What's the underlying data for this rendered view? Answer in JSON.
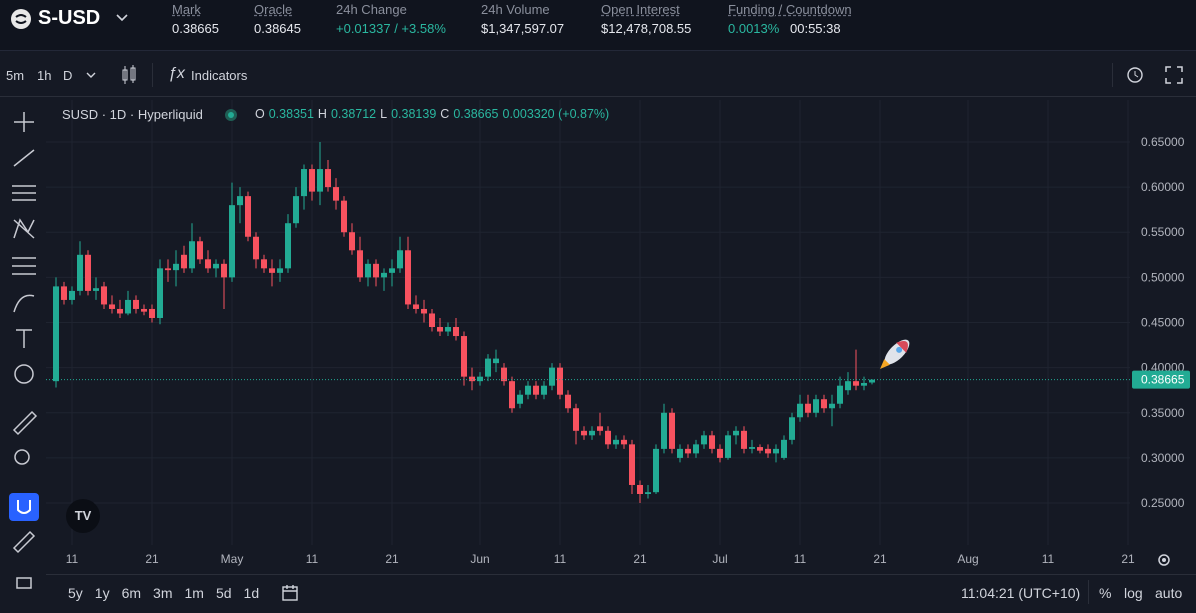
{
  "header": {
    "symbol": "S-USD",
    "stats": [
      {
        "label": "Mark",
        "value": "0.38665"
      },
      {
        "label": "Oracle",
        "value": "0.38645"
      },
      {
        "label": "24h Change",
        "value": "+0.01337 / +3.58%"
      },
      {
        "label": "24h Volume",
        "value": "$1,347,597.07"
      },
      {
        "label": "Open Interest",
        "value": "$12,478,708.55"
      },
      {
        "label": "Funding / Countdown",
        "value": "0.0013%",
        "countdown": "00:55:38"
      }
    ]
  },
  "toolbar": {
    "intervals": [
      "5m",
      "1h",
      "D"
    ],
    "indicators": "Indicators"
  },
  "legend": {
    "title": "SUSD · 1D · Hyperliquid",
    "items": [
      {
        "key": "O",
        "value": "0.38351"
      },
      {
        "key": "H",
        "value": "0.38712"
      },
      {
        "key": "L",
        "value": "0.38139"
      },
      {
        "key": "C",
        "value": "0.38665"
      }
    ],
    "change": "0.003320 (+0.87%)"
  },
  "chart_data": {
    "type": "candlestick",
    "up_color": "#22ab94",
    "down_color": "#f7525f",
    "grid": true,
    "ohlc": [
      [
        0.385,
        0.5,
        0.378,
        0.49
      ],
      [
        0.49,
        0.495,
        0.47,
        0.475
      ],
      [
        0.475,
        0.49,
        0.47,
        0.485
      ],
      [
        0.485,
        0.54,
        0.48,
        0.525
      ],
      [
        0.525,
        0.53,
        0.48,
        0.485
      ],
      [
        0.485,
        0.5,
        0.475,
        0.488
      ],
      [
        0.49,
        0.495,
        0.465,
        0.47
      ],
      [
        0.47,
        0.48,
        0.46,
        0.465
      ],
      [
        0.465,
        0.475,
        0.455,
        0.46
      ],
      [
        0.46,
        0.485,
        0.458,
        0.475
      ],
      [
        0.475,
        0.48,
        0.46,
        0.465
      ],
      [
        0.465,
        0.47,
        0.458,
        0.462
      ],
      [
        0.465,
        0.47,
        0.45,
        0.455
      ],
      [
        0.455,
        0.52,
        0.448,
        0.51
      ],
      [
        0.51,
        0.52,
        0.495,
        0.508
      ],
      [
        0.508,
        0.53,
        0.49,
        0.515
      ],
      [
        0.525,
        0.535,
        0.505,
        0.51
      ],
      [
        0.51,
        0.56,
        0.505,
        0.54
      ],
      [
        0.54,
        0.545,
        0.515,
        0.52
      ],
      [
        0.52,
        0.53,
        0.505,
        0.51
      ],
      [
        0.51,
        0.52,
        0.5,
        0.515
      ],
      [
        0.515,
        0.52,
        0.465,
        0.5
      ],
      [
        0.5,
        0.605,
        0.495,
        0.58
      ],
      [
        0.58,
        0.6,
        0.56,
        0.59
      ],
      [
        0.59,
        0.595,
        0.54,
        0.545
      ],
      [
        0.545,
        0.55,
        0.51,
        0.52
      ],
      [
        0.52,
        0.525,
        0.505,
        0.51
      ],
      [
        0.51,
        0.52,
        0.49,
        0.505
      ],
      [
        0.505,
        0.52,
        0.495,
        0.51
      ],
      [
        0.51,
        0.57,
        0.505,
        0.56
      ],
      [
        0.56,
        0.6,
        0.555,
        0.59
      ],
      [
        0.59,
        0.625,
        0.575,
        0.62
      ],
      [
        0.62,
        0.625,
        0.585,
        0.595
      ],
      [
        0.595,
        0.65,
        0.58,
        0.62
      ],
      [
        0.62,
        0.63,
        0.595,
        0.6
      ],
      [
        0.6,
        0.61,
        0.575,
        0.585
      ],
      [
        0.585,
        0.59,
        0.545,
        0.55
      ],
      [
        0.55,
        0.56,
        0.525,
        0.53
      ],
      [
        0.53,
        0.545,
        0.495,
        0.5
      ],
      [
        0.5,
        0.52,
        0.49,
        0.515
      ],
      [
        0.515,
        0.52,
        0.49,
        0.5
      ],
      [
        0.5,
        0.51,
        0.485,
        0.505
      ],
      [
        0.505,
        0.52,
        0.49,
        0.51
      ],
      [
        0.51,
        0.545,
        0.505,
        0.53
      ],
      [
        0.53,
        0.545,
        0.465,
        0.47
      ],
      [
        0.47,
        0.48,
        0.46,
        0.465
      ],
      [
        0.465,
        0.475,
        0.45,
        0.46
      ],
      [
        0.46,
        0.465,
        0.44,
        0.445
      ],
      [
        0.445,
        0.455,
        0.435,
        0.44
      ],
      [
        0.44,
        0.45,
        0.435,
        0.445
      ],
      [
        0.445,
        0.455,
        0.43,
        0.435
      ],
      [
        0.435,
        0.44,
        0.38,
        0.39
      ],
      [
        0.39,
        0.4,
        0.375,
        0.385
      ],
      [
        0.385,
        0.395,
        0.38,
        0.39
      ],
      [
        0.39,
        0.415,
        0.385,
        0.41
      ],
      [
        0.405,
        0.42,
        0.395,
        0.41
      ],
      [
        0.4,
        0.405,
        0.38,
        0.385
      ],
      [
        0.385,
        0.39,
        0.35,
        0.355
      ],
      [
        0.36,
        0.375,
        0.355,
        0.37
      ],
      [
        0.37,
        0.385,
        0.365,
        0.38
      ],
      [
        0.38,
        0.385,
        0.365,
        0.37
      ],
      [
        0.37,
        0.385,
        0.365,
        0.38
      ],
      [
        0.38,
        0.405,
        0.375,
        0.4
      ],
      [
        0.4,
        0.405,
        0.365,
        0.37
      ],
      [
        0.37,
        0.375,
        0.35,
        0.355
      ],
      [
        0.355,
        0.36,
        0.315,
        0.33
      ],
      [
        0.33,
        0.335,
        0.32,
        0.325
      ],
      [
        0.325,
        0.335,
        0.32,
        0.33
      ],
      [
        0.335,
        0.35,
        0.325,
        0.33
      ],
      [
        0.33,
        0.335,
        0.31,
        0.315
      ],
      [
        0.315,
        0.325,
        0.31,
        0.32
      ],
      [
        0.32,
        0.325,
        0.31,
        0.315
      ],
      [
        0.315,
        0.32,
        0.26,
        0.27
      ],
      [
        0.27,
        0.275,
        0.25,
        0.26
      ],
      [
        0.26,
        0.27,
        0.255,
        0.262
      ],
      [
        0.262,
        0.315,
        0.26,
        0.31
      ],
      [
        0.31,
        0.36,
        0.305,
        0.35
      ],
      [
        0.35,
        0.355,
        0.305,
        0.31
      ],
      [
        0.3,
        0.315,
        0.295,
        0.31
      ],
      [
        0.31,
        0.315,
        0.3,
        0.305
      ],
      [
        0.305,
        0.32,
        0.3,
        0.315
      ],
      [
        0.315,
        0.33,
        0.31,
        0.325
      ],
      [
        0.325,
        0.33,
        0.305,
        0.31
      ],
      [
        0.31,
        0.315,
        0.295,
        0.3
      ],
      [
        0.3,
        0.33,
        0.298,
        0.325
      ],
      [
        0.325,
        0.335,
        0.315,
        0.33
      ],
      [
        0.33,
        0.335,
        0.305,
        0.31
      ],
      [
        0.31,
        0.32,
        0.305,
        0.312
      ],
      [
        0.312,
        0.315,
        0.305,
        0.308
      ],
      [
        0.31,
        0.315,
        0.3,
        0.305
      ],
      [
        0.305,
        0.315,
        0.295,
        0.31
      ],
      [
        0.3,
        0.325,
        0.298,
        0.32
      ],
      [
        0.32,
        0.35,
        0.315,
        0.345
      ],
      [
        0.345,
        0.37,
        0.34,
        0.36
      ],
      [
        0.36,
        0.37,
        0.345,
        0.35
      ],
      [
        0.35,
        0.37,
        0.345,
        0.365
      ],
      [
        0.365,
        0.37,
        0.35,
        0.355
      ],
      [
        0.355,
        0.37,
        0.335,
        0.36
      ],
      [
        0.36,
        0.39,
        0.355,
        0.38
      ],
      [
        0.375,
        0.395,
        0.37,
        0.385
      ],
      [
        0.385,
        0.42,
        0.375,
        0.38
      ],
      [
        0.38,
        0.39,
        0.375,
        0.383
      ],
      [
        0.38351,
        0.38712,
        0.38139,
        0.38665
      ]
    ],
    "xlim": [
      -1.25,
      134.25
    ],
    "xticks": [
      {
        "value": 2,
        "label": "11"
      },
      {
        "value": 12,
        "label": "21"
      },
      {
        "value": 22,
        "label": "May"
      },
      {
        "value": 32,
        "label": "11"
      },
      {
        "value": 42,
        "label": "21"
      },
      {
        "value": 53,
        "label": "Jun"
      },
      {
        "value": 63,
        "label": "11"
      },
      {
        "value": 73,
        "label": "21"
      },
      {
        "value": 83,
        "label": "Jul"
      },
      {
        "value": 93,
        "label": "11"
      },
      {
        "value": 103,
        "label": "21"
      },
      {
        "value": 114,
        "label": "Aug"
      },
      {
        "value": 124,
        "label": "11"
      },
      {
        "value": 134,
        "label": "21"
      }
    ],
    "ylim": [
      0.2035,
      0.6965
    ],
    "yticks": [
      {
        "value": 0.25,
        "label": "0.25000"
      },
      {
        "value": 0.3,
        "label": "0.30000"
      },
      {
        "value": 0.35,
        "label": "0.35000"
      },
      {
        "value": 0.4,
        "label": "0.40000"
      },
      {
        "value": 0.45,
        "label": "0.45000"
      },
      {
        "value": 0.5,
        "label": "0.50000"
      },
      {
        "value": 0.55,
        "label": "0.55000"
      },
      {
        "value": 0.6,
        "label": "0.60000"
      },
      {
        "value": 0.65,
        "label": "0.65000"
      }
    ],
    "last_price": 0.38665
  },
  "footer": {
    "ranges": [
      "5y",
      "1y",
      "6m",
      "3m",
      "1m",
      "5d",
      "1d"
    ],
    "time": "11:04:21 (UTC+10)",
    "options": [
      "%",
      "log",
      "auto"
    ]
  }
}
